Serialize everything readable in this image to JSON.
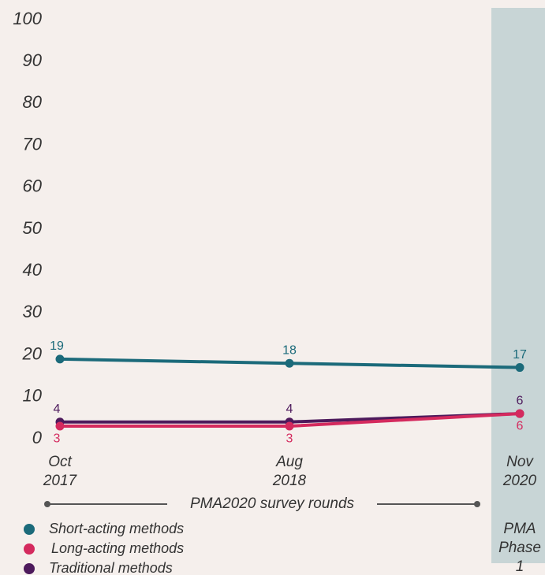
{
  "chart_data": {
    "type": "line",
    "categories": [
      "Oct 2017",
      "Aug 2018",
      "Nov 2020"
    ],
    "series": [
      {
        "name": "Short-acting methods",
        "color": "#1b6a7a",
        "values": [
          19,
          18,
          17
        ]
      },
      {
        "name": "Long-acting methods",
        "color": "#d42a5e",
        "values": [
          3,
          3,
          6
        ]
      },
      {
        "name": "Traditional methods",
        "color": "#4d1a5c",
        "values": [
          4,
          4,
          6
        ]
      }
    ],
    "ylim": [
      0,
      100
    ],
    "yticks": [
      0,
      10,
      20,
      30,
      40,
      50,
      60,
      70,
      80,
      90,
      100
    ],
    "annotations": [
      "PMA2020 survey rounds",
      "PMA Phase 1"
    ],
    "shaded_band_color": "#c8d5d6"
  }
}
